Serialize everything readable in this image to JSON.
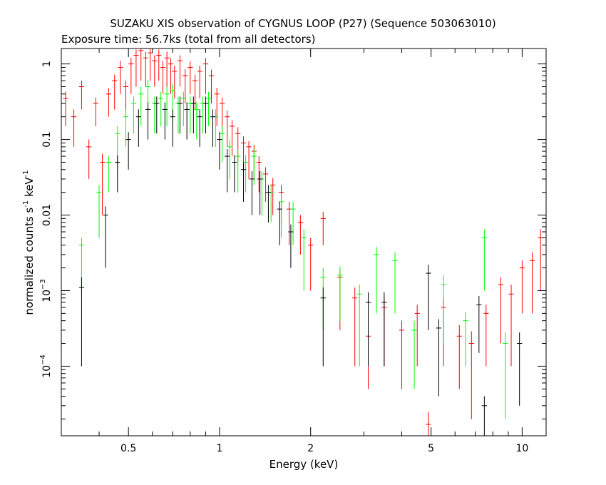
{
  "chart_data": {
    "type": "scatter",
    "title": "SUZAKU XIS observation of CYGNUS LOOP (P27) (Sequence 503063010)",
    "subtitle": "Exposure time: 56.7ks (total from all detectors)",
    "xlabel": "Energy (keV)",
    "ylabel_main": "normalized counts s",
    "ylabel_sup1": "-1",
    "ylabel_mid": " keV",
    "ylabel_sup2": "-1",
    "x_scale": "log",
    "y_scale": "log",
    "xlim": [
      0.3,
      12
    ],
    "ylim": [
      1.2e-05,
      1.6
    ],
    "x_ticks": [
      {
        "value": 0.5,
        "label": "0.5"
      },
      {
        "value": 1,
        "label": "1"
      },
      {
        "value": 2,
        "label": "2"
      },
      {
        "value": 5,
        "label": "5"
      },
      {
        "value": 10,
        "label": "10"
      }
    ],
    "y_ticks": [
      {
        "value": 1,
        "label": "1"
      },
      {
        "value": 0.1,
        "label": "0.1"
      },
      {
        "value": 0.01,
        "label": "0.01"
      },
      {
        "value": 0.001,
        "label": "10",
        "exp": "−3"
      },
      {
        "value": 0.0001,
        "label": "10",
        "exp": "−4"
      }
    ],
    "grid": false,
    "legend": "none",
    "series": [
      {
        "color": "#ff0000",
        "points": [
          [
            0.31,
            0.35,
            0.2,
            0.08
          ],
          [
            0.33,
            0.2,
            0.12,
            0.05
          ],
          [
            0.35,
            0.5,
            0.25,
            0.1
          ],
          [
            0.37,
            0.08,
            0.05,
            0.02
          ],
          [
            0.39,
            0.3,
            0.15,
            0.06
          ],
          [
            0.41,
            0.05,
            0.04,
            0.015
          ],
          [
            0.43,
            0.4,
            0.2,
            0.08
          ],
          [
            0.45,
            0.6,
            0.35,
            0.12
          ],
          [
            0.47,
            0.9,
            0.5,
            0.2
          ],
          [
            0.49,
            0.5,
            0.3,
            0.1
          ],
          [
            0.51,
            1.0,
            0.6,
            0.2
          ],
          [
            0.53,
            1.3,
            0.8,
            0.25
          ],
          [
            0.55,
            1.5,
            0.9,
            0.3
          ],
          [
            0.57,
            1.2,
            0.7,
            0.25
          ],
          [
            0.59,
            1.4,
            0.8,
            0.3
          ],
          [
            0.61,
            1.1,
            0.6,
            0.2
          ],
          [
            0.63,
            1.3,
            0.7,
            0.25
          ],
          [
            0.65,
            0.9,
            0.5,
            0.2
          ],
          [
            0.67,
            1.2,
            0.7,
            0.25
          ],
          [
            0.69,
            1.0,
            0.6,
            0.2
          ],
          [
            0.71,
            0.8,
            0.45,
            0.15
          ],
          [
            0.74,
            1.1,
            0.6,
            0.2
          ],
          [
            0.77,
            0.7,
            0.4,
            0.15
          ],
          [
            0.8,
            0.9,
            0.5,
            0.18
          ],
          [
            0.83,
            0.6,
            0.35,
            0.12
          ],
          [
            0.86,
            0.8,
            0.45,
            0.15
          ],
          [
            0.9,
            1.0,
            0.6,
            0.2
          ],
          [
            0.94,
            0.7,
            0.4,
            0.14
          ],
          [
            0.98,
            0.4,
            0.25,
            0.08
          ],
          [
            1.02,
            0.3,
            0.18,
            0.06
          ],
          [
            1.06,
            0.2,
            0.12,
            0.04
          ],
          [
            1.1,
            0.15,
            0.09,
            0.03
          ],
          [
            1.15,
            0.12,
            0.07,
            0.025
          ],
          [
            1.2,
            0.09,
            0.05,
            0.02
          ],
          [
            1.25,
            0.08,
            0.05,
            0.015
          ],
          [
            1.3,
            0.07,
            0.04,
            0.015
          ],
          [
            1.35,
            0.05,
            0.03,
            0.01
          ],
          [
            1.42,
            0.035,
            0.02,
            0.008
          ],
          [
            1.5,
            0.025,
            0.015,
            0.006
          ],
          [
            1.6,
            0.02,
            0.012,
            0.005
          ],
          [
            1.7,
            0.012,
            0.008,
            0.003
          ],
          [
            1.85,
            0.008,
            0.005,
            0.002
          ],
          [
            2.0,
            0.004,
            0.003,
            0.001
          ],
          [
            2.2,
            0.009,
            0.005,
            0.002
          ],
          [
            2.5,
            0.0015,
            0.0012,
            0.0004
          ],
          [
            2.8,
            0.0008,
            0.0007,
            0.0003
          ],
          [
            3.1,
            0.00025,
            0.0002,
            0.0001
          ],
          [
            3.5,
            0.0006,
            0.0005,
            0.0002
          ],
          [
            4.0,
            0.0003,
            0.00025,
            0.0001
          ],
          [
            4.5,
            0.0005,
            0.0004,
            0.00015
          ],
          [
            4.9,
            1.7e-05,
            1.5e-05,
            8e-06
          ],
          [
            5.5,
            0.0006,
            0.0005,
            0.0002
          ],
          [
            6.2,
            0.00025,
            0.0002,
            0.0001
          ],
          [
            6.8,
            0.0002,
            0.00018,
            9e-05
          ],
          [
            7.6,
            0.0005,
            0.0004,
            0.00015
          ],
          [
            8.5,
            0.0012,
            0.001,
            0.0003
          ],
          [
            9.2,
            0.0009,
            0.0008,
            0.0003
          ],
          [
            10.0,
            0.002,
            0.0015,
            0.0005
          ],
          [
            10.8,
            0.0025,
            0.002,
            0.0007
          ],
          [
            11.5,
            0.005,
            0.004,
            0.0015
          ]
        ]
      },
      {
        "color": "#00ff00",
        "points": [
          [
            0.35,
            0.004,
            0.003,
            0.001
          ],
          [
            0.4,
            0.02,
            0.015,
            0.005
          ],
          [
            0.43,
            0.05,
            0.03,
            0.01
          ],
          [
            0.46,
            0.12,
            0.08,
            0.03
          ],
          [
            0.49,
            0.2,
            0.12,
            0.05
          ],
          [
            0.52,
            0.3,
            0.18,
            0.07
          ],
          [
            0.55,
            0.4,
            0.25,
            0.1
          ],
          [
            0.58,
            0.5,
            0.3,
            0.12
          ],
          [
            0.61,
            0.3,
            0.18,
            0.07
          ],
          [
            0.64,
            0.35,
            0.2,
            0.08
          ],
          [
            0.67,
            0.4,
            0.25,
            0.1
          ],
          [
            0.7,
            0.45,
            0.28,
            0.1
          ],
          [
            0.73,
            0.3,
            0.18,
            0.07
          ],
          [
            0.76,
            0.35,
            0.2,
            0.08
          ],
          [
            0.8,
            0.3,
            0.18,
            0.07
          ],
          [
            0.84,
            0.25,
            0.15,
            0.06
          ],
          [
            0.88,
            0.3,
            0.18,
            0.07
          ],
          [
            0.92,
            0.35,
            0.2,
            0.08
          ],
          [
            0.97,
            0.2,
            0.12,
            0.05
          ],
          [
            1.02,
            0.12,
            0.07,
            0.03
          ],
          [
            1.08,
            0.08,
            0.05,
            0.02
          ],
          [
            1.15,
            0.06,
            0.04,
            0.015
          ],
          [
            1.22,
            0.05,
            0.03,
            0.012
          ],
          [
            1.3,
            0.06,
            0.035,
            0.015
          ],
          [
            1.38,
            0.03,
            0.02,
            0.008
          ],
          [
            1.48,
            0.02,
            0.012,
            0.005
          ],
          [
            1.6,
            0.015,
            0.01,
            0.004
          ],
          [
            1.75,
            0.012,
            0.008,
            0.003
          ],
          [
            1.9,
            0.005,
            0.004,
            0.0015
          ],
          [
            2.2,
            0.0015,
            0.0012,
            0.0005
          ],
          [
            2.5,
            0.0016,
            0.0012,
            0.0005
          ],
          [
            2.9,
            0.0009,
            0.0008,
            0.0003
          ],
          [
            3.3,
            0.003,
            0.0025,
            0.0008
          ],
          [
            3.8,
            0.0025,
            0.002,
            0.0007
          ],
          [
            4.4,
            0.0003,
            0.00025,
            0.0001
          ],
          [
            5.5,
            0.0012,
            0.001,
            0.0004
          ],
          [
            6.5,
            0.0004,
            0.0003,
            0.00012
          ],
          [
            7.5,
            0.005,
            0.004,
            0.0015
          ],
          [
            8.8,
            0.0002,
            0.00018,
            8e-05
          ]
        ]
      },
      {
        "color": "#000000",
        "points": [
          [
            0.35,
            0.0011,
            0.001,
            0.0004
          ],
          [
            0.42,
            0.01,
            0.008,
            0.003
          ],
          [
            0.46,
            0.05,
            0.03,
            0.012
          ],
          [
            0.5,
            0.1,
            0.06,
            0.025
          ],
          [
            0.54,
            0.2,
            0.12,
            0.05
          ],
          [
            0.58,
            0.25,
            0.15,
            0.06
          ],
          [
            0.62,
            0.3,
            0.18,
            0.07
          ],
          [
            0.66,
            0.25,
            0.15,
            0.06
          ],
          [
            0.7,
            0.2,
            0.12,
            0.05
          ],
          [
            0.74,
            0.3,
            0.18,
            0.07
          ],
          [
            0.78,
            0.25,
            0.15,
            0.06
          ],
          [
            0.82,
            0.3,
            0.18,
            0.07
          ],
          [
            0.86,
            0.2,
            0.12,
            0.05
          ],
          [
            0.9,
            0.3,
            0.18,
            0.07
          ],
          [
            0.95,
            0.2,
            0.12,
            0.05
          ],
          [
            1.0,
            0.1,
            0.06,
            0.025
          ],
          [
            1.06,
            0.06,
            0.04,
            0.015
          ],
          [
            1.12,
            0.05,
            0.03,
            0.012
          ],
          [
            1.2,
            0.04,
            0.025,
            0.01
          ],
          [
            1.28,
            0.03,
            0.02,
            0.008
          ],
          [
            1.36,
            0.03,
            0.02,
            0.008
          ],
          [
            1.45,
            0.02,
            0.012,
            0.005
          ],
          [
            1.58,
            0.012,
            0.008,
            0.003
          ],
          [
            1.72,
            0.006,
            0.004,
            0.0015
          ],
          [
            2.2,
            0.0008,
            0.0007,
            0.0003
          ],
          [
            3.1,
            0.0007,
            0.0006,
            0.00025
          ],
          [
            3.5,
            0.0007,
            0.0006,
            0.00025
          ],
          [
            4.9,
            0.0017,
            0.0014,
            0.0005
          ],
          [
            5.3,
            0.00032,
            0.00028,
            0.0001
          ],
          [
            7.2,
            0.00065,
            0.0005,
            0.0002
          ],
          [
            7.5,
            3e-05,
            2e-05,
            1e-05
          ],
          [
            9.8,
            0.0002,
            0.00017,
            8e-05
          ]
        ]
      }
    ]
  }
}
